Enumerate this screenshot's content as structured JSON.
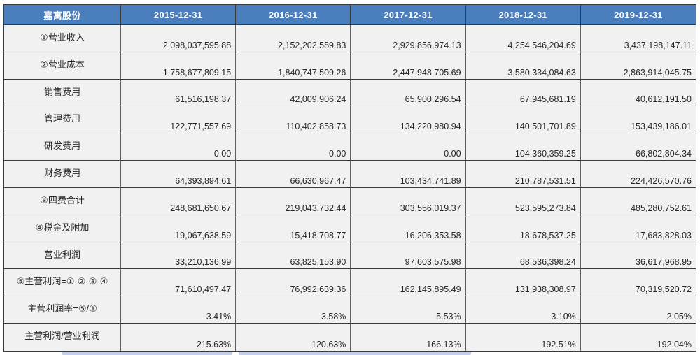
{
  "app": {
    "kind": "spreadsheet-financial-table"
  },
  "colors": {
    "header_bg": "#4a7ebc",
    "header_text": "#ffffff",
    "cell_bg": "#f1f1f1",
    "border_dark": "#3a3a3a",
    "border_mid": "#5f5f5f",
    "text": "#262626",
    "shadow": "#b7c7e8"
  },
  "table": {
    "corner_label": "嘉寓股份",
    "columns": [
      "2015-12-31",
      "2016-12-31",
      "2017-12-31",
      "2018-12-31",
      "2019-12-31"
    ],
    "rows": [
      {
        "label": "①营业收入",
        "values": [
          "2,098,037,595.88",
          "2,152,202,589.83",
          "2,929,856,974.13",
          "4,254,546,204.69",
          "3,437,198,147.11"
        ]
      },
      {
        "label": "②营业成本",
        "values": [
          "1,758,677,809.15",
          "1,840,747,509.26",
          "2,447,948,705.69",
          "3,580,334,084.63",
          "2,863,914,045.75"
        ]
      },
      {
        "label": "销售费用",
        "values": [
          "61,516,198.37",
          "42,009,906.24",
          "65,900,296.54",
          "67,945,681.19",
          "40,612,191.50"
        ]
      },
      {
        "label": "管理费用",
        "values": [
          "122,771,557.69",
          "110,402,858.73",
          "134,220,980.94",
          "140,501,701.89",
          "153,439,186.01"
        ]
      },
      {
        "label": "研发费用",
        "values": [
          "0.00",
          "0.00",
          "0.00",
          "104,360,359.25",
          "66,802,804.34"
        ]
      },
      {
        "label": "财务费用",
        "values": [
          "64,393,894.61",
          "66,630,967.47",
          "103,434,741.89",
          "210,787,531.51",
          "224,426,570.76"
        ]
      },
      {
        "label": "③四费合计",
        "values": [
          "248,681,650.67",
          "219,043,732.44",
          "303,556,019.37",
          "523,595,273.84",
          "485,280,752.61"
        ]
      },
      {
        "label": "④税金及附加",
        "values": [
          "19,067,638.59",
          "15,418,708.77",
          "16,206,353.58",
          "18,678,537.25",
          "17,683,828.03"
        ]
      },
      {
        "label": "营业利润",
        "values": [
          "33,210,136.99",
          "63,825,153.90",
          "97,603,575.98",
          "68,536,398.24",
          "36,617,968.95"
        ]
      },
      {
        "label": "⑤主营利润=①-②-③-④",
        "values": [
          "71,610,497.47",
          "76,992,639.36",
          "162,145,895.49",
          "131,938,308.97",
          "70,319,520.72"
        ]
      },
      {
        "label": "主营利润率=⑤/①",
        "values": [
          "3.41%",
          "3.58%",
          "5.53%",
          "3.10%",
          "2.05%"
        ]
      },
      {
        "label": "主营利润/营业利润",
        "values": [
          "215.63%",
          "120.63%",
          "166.13%",
          "192.51%",
          "192.04%"
        ]
      }
    ]
  }
}
